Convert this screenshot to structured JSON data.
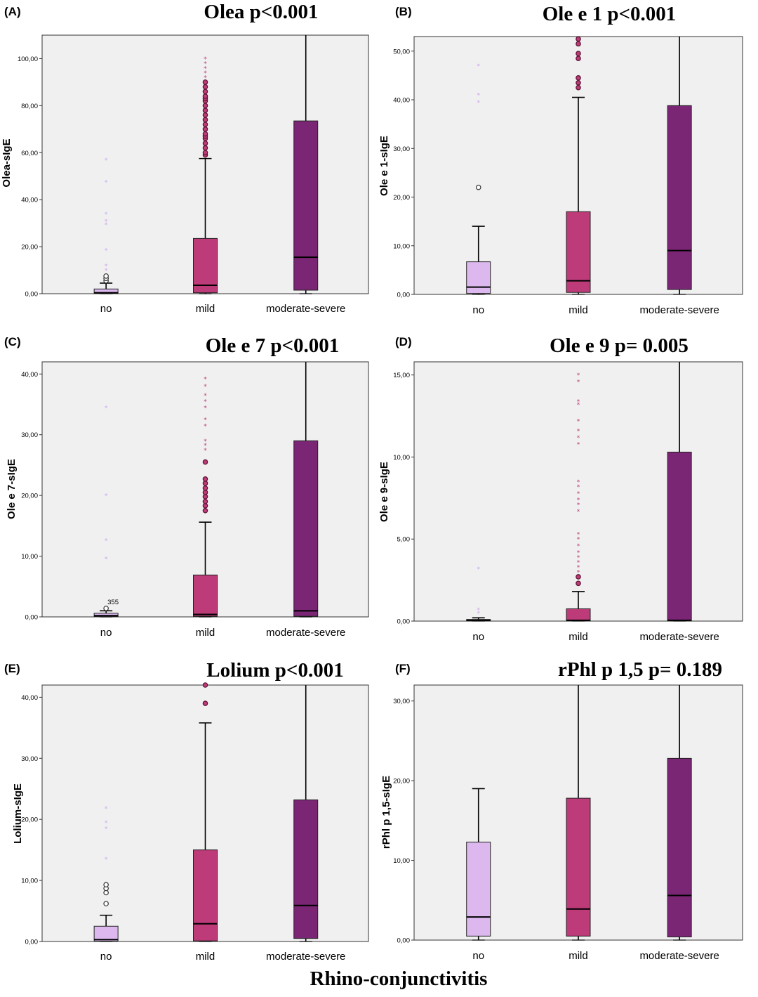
{
  "footer": {
    "xlabel": "Rhino-conjunctivitis"
  },
  "colors": {
    "no": "#dcb8ef",
    "mild": "#bc3b78",
    "moderate-severe": "#7b2675",
    "plot_bg": "#f0f0f0"
  },
  "chart_data": [
    {
      "type": "box",
      "letter": "(A)",
      "title": "Olea p<0.001",
      "ylabel": "Olea-sIgE",
      "categories": [
        "no",
        "mild",
        "moderate-severe"
      ],
      "ylim": [
        0,
        110
      ],
      "yticks": [
        0,
        20,
        40,
        60,
        80,
        100
      ],
      "ytick_labels": [
        "0,00",
        "20,00",
        "40,00",
        "60,00",
        "80,00",
        "100,00"
      ],
      "boxes": [
        {
          "q1": 0.1,
          "median": 0.4,
          "q3": 2.0,
          "whisker_low": 0,
          "whisker_high": 4.5,
          "outliers": [
            5.5,
            6.5,
            7.5
          ],
          "extremes": [
            10,
            12,
            18.5,
            29.5,
            31,
            34,
            47.5,
            57
          ]
        },
        {
          "q1": 0.4,
          "median": 3.6,
          "q3": 23.5,
          "whisker_low": 0,
          "whisker_high": 57.5,
          "outliers": [
            59,
            60,
            62,
            64,
            66,
            67,
            68,
            70,
            72,
            74,
            76,
            78,
            80,
            82,
            83,
            84,
            86,
            88,
            90
          ],
          "extremes": [
            92,
            94,
            96,
            98,
            100
          ]
        },
        {
          "q1": 1.5,
          "median": 15.5,
          "q3": 73.5,
          "whisker_low": 0,
          "whisker_high": 110,
          "outliers": [],
          "extremes": []
        }
      ]
    },
    {
      "type": "box",
      "letter": "(B)",
      "title": "Ole e 1 p<0.001",
      "ylabel": "Ole e 1-sIgE",
      "categories": [
        "no",
        "mild",
        "moderate-severe"
      ],
      "ylim": [
        0,
        53
      ],
      "yticks": [
        0,
        10,
        20,
        30,
        40,
        50
      ],
      "ytick_labels": [
        "0,00",
        "10,00",
        "20,00",
        "30,00",
        "40,00",
        "50,00"
      ],
      "boxes": [
        {
          "q1": 0.2,
          "median": 1.5,
          "q3": 6.7,
          "whisker_low": 0,
          "whisker_high": 14,
          "outliers": [
            22
          ],
          "extremes": [
            39.5,
            41,
            47
          ]
        },
        {
          "q1": 0.4,
          "median": 2.8,
          "q3": 17,
          "whisker_low": 0,
          "whisker_high": 40.5,
          "outliers": [
            42.5,
            43.5,
            44.5,
            48.5,
            49.5,
            51.5,
            52.5
          ],
          "extremes": []
        },
        {
          "q1": 1.0,
          "median": 9.0,
          "q3": 38.8,
          "whisker_low": 0,
          "whisker_high": 53,
          "outliers": [],
          "extremes": []
        }
      ]
    },
    {
      "type": "box",
      "letter": "(C)",
      "title": "Ole e 7 p<0.001",
      "ylabel": "Ole e 7-sIgE",
      "categories": [
        "no",
        "mild",
        "moderate-severe"
      ],
      "ylim": [
        0,
        42
      ],
      "yticks": [
        0,
        10,
        20,
        30,
        40
      ],
      "ytick_labels": [
        "0,00",
        "10,00",
        "20,00",
        "30,00",
        "40,00"
      ],
      "annotation": "355",
      "boxes": [
        {
          "q1": 0.05,
          "median": 0.2,
          "q3": 0.6,
          "whisker_low": 0,
          "whisker_high": 1.0,
          "outliers": [
            1.4
          ],
          "extremes": [
            9.6,
            12.6,
            20,
            34.5
          ]
        },
        {
          "q1": 0.1,
          "median": 0.4,
          "q3": 6.9,
          "whisker_low": 0,
          "whisker_high": 15.6,
          "outliers": [
            17.5,
            18.3,
            19,
            19.8,
            20.5,
            21.2,
            22,
            22.7,
            25.5
          ],
          "extremes": [
            27.5,
            28.3,
            29,
            31.5,
            32.5,
            34.5,
            35.5,
            36.5,
            38,
            39.2
          ]
        },
        {
          "q1": 0.1,
          "median": 1.0,
          "q3": 29,
          "whisker_low": 0,
          "whisker_high": 42,
          "outliers": [],
          "extremes": []
        }
      ]
    },
    {
      "type": "box",
      "letter": "(D)",
      "title": "Ole e 9 p= 0.005",
      "ylabel": "Ole e 9-sIgE",
      "categories": [
        "no",
        "mild",
        "moderate-severe"
      ],
      "ylim": [
        0,
        15.8
      ],
      "yticks": [
        0,
        5,
        10,
        15
      ],
      "ytick_labels": [
        "0,00",
        "5,00",
        "10,00",
        "15,00"
      ],
      "boxes": [
        {
          "q1": 0.0,
          "median": 0.05,
          "q3": 0.1,
          "whisker_low": 0,
          "whisker_high": 0.2,
          "outliers": [],
          "extremes": [
            0.5,
            0.7,
            3.2
          ]
        },
        {
          "q1": 0.0,
          "median": 0.05,
          "q3": 0.75,
          "whisker_low": 0,
          "whisker_high": 1.8,
          "outliers": [
            2.3,
            2.7
          ],
          "extremes": [
            3.0,
            3.3,
            3.6,
            3.9,
            4.2,
            4.6,
            5.0,
            5.3,
            6.7,
            7.1,
            7.4,
            7.8,
            8.2,
            8.5,
            10.8,
            11.2,
            11.6,
            12.2,
            13.2,
            13.4,
            14.6,
            15.0
          ]
        },
        {
          "q1": 0.0,
          "median": 0.05,
          "q3": 10.3,
          "whisker_low": 0,
          "whisker_high": 15.8,
          "outliers": [],
          "extremes": []
        }
      ]
    },
    {
      "type": "box",
      "letter": "(E)",
      "title": "Lolium  p<0.001",
      "ylabel": "Lolium-sIgE",
      "categories": [
        "no",
        "mild",
        "moderate-severe"
      ],
      "ylim": [
        0,
        42
      ],
      "yticks": [
        0,
        10,
        20,
        30,
        40
      ],
      "ytick_labels": [
        "0,00",
        "10,00",
        "20,00",
        "30,00",
        "40,00"
      ],
      "boxes": [
        {
          "q1": 0.05,
          "median": 0.3,
          "q3": 2.5,
          "whisker_low": 0,
          "whisker_high": 4.3,
          "outliers": [
            6.2,
            8.0,
            8.7,
            9.3
          ],
          "extremes": [
            13.5,
            18.5,
            19.5,
            21.8
          ]
        },
        {
          "q1": 0.1,
          "median": 2.9,
          "q3": 15,
          "whisker_low": 0,
          "whisker_high": 35.8,
          "outliers": [
            39,
            42
          ],
          "extremes": []
        },
        {
          "q1": 0.5,
          "median": 5.9,
          "q3": 23.2,
          "whisker_low": 0,
          "whisker_high": 42,
          "outliers": [],
          "extremes": []
        }
      ]
    },
    {
      "type": "box",
      "letter": "(F)",
      "title": "rPhl  p 1,5 p= 0.189",
      "ylabel": "rPhl p 1,5-sIgE",
      "categories": [
        "no",
        "mild",
        "moderate-severe"
      ],
      "ylim": [
        0,
        32
      ],
      "yticks": [
        0,
        10,
        20,
        30
      ],
      "ytick_labels": [
        "0,00",
        "10,00",
        "20,00",
        "30,00"
      ],
      "boxes": [
        {
          "q1": 0.5,
          "median": 2.9,
          "q3": 12.3,
          "whisker_low": 0,
          "whisker_high": 19,
          "outliers": [],
          "extremes": []
        },
        {
          "q1": 0.5,
          "median": 3.9,
          "q3": 17.8,
          "whisker_low": 0,
          "whisker_high": 32,
          "outliers": [],
          "extremes": []
        },
        {
          "q1": 0.4,
          "median": 5.6,
          "q3": 22.8,
          "whisker_low": 0,
          "whisker_high": 32,
          "outliers": [],
          "extremes": []
        }
      ]
    }
  ]
}
